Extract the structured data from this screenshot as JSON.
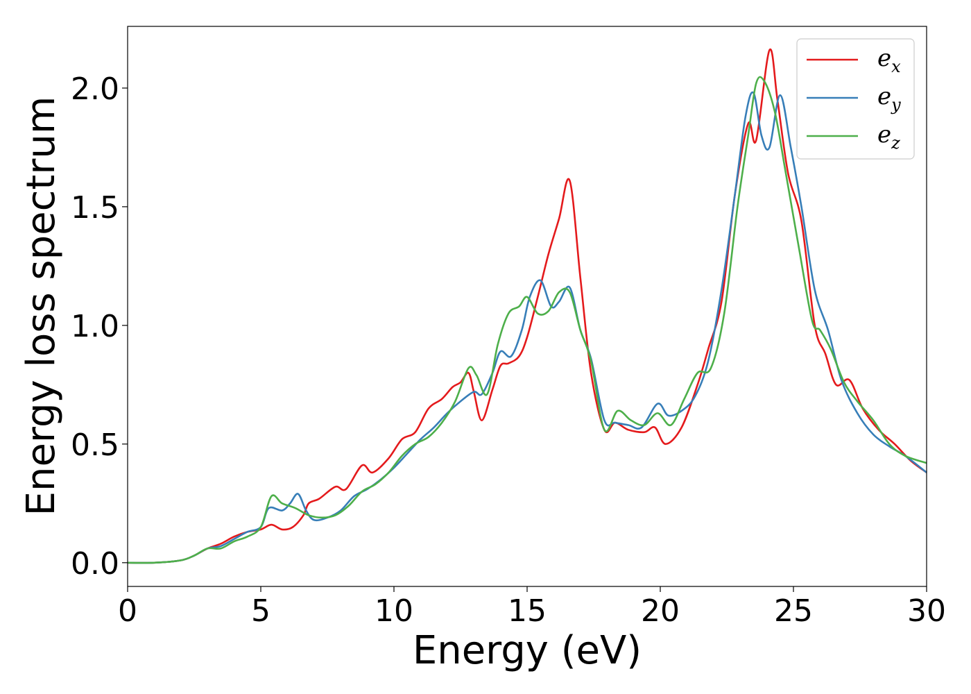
{
  "chart_data": {
    "type": "line",
    "title": "",
    "xlabel": "Energy (eV)",
    "ylabel": "Energy loss spectrum",
    "xlim": [
      0,
      30
    ],
    "ylim": [
      -0.1,
      2.26
    ],
    "xticks": [
      0,
      5,
      10,
      15,
      20,
      25,
      30
    ],
    "yticks": [
      0.0,
      0.5,
      1.0,
      1.5,
      2.0
    ],
    "xtick_labels": [
      "0",
      "5",
      "10",
      "15",
      "20",
      "25",
      "30"
    ],
    "ytick_labels": [
      "0.0",
      "0.5",
      "1.0",
      "1.5",
      "2.0"
    ],
    "grid": false,
    "legend_position": "top-right",
    "series": [
      {
        "name": "e_x",
        "legend_base": "e",
        "legend_sub": "x",
        "color": "#e41a1c",
        "x": [
          0,
          1,
          2,
          2.5,
          3,
          3.5,
          4,
          4.5,
          5,
          5.4,
          5.8,
          6.2,
          6.6,
          6.8,
          7.2,
          7.8,
          8.2,
          8.8,
          9.2,
          9.8,
          10.3,
          10.8,
          11.3,
          11.8,
          12.2,
          12.5,
          12.8,
          13.0,
          13.3,
          13.7,
          14.0,
          14.3,
          14.7,
          15.0,
          15.4,
          15.8,
          16.2,
          16.6,
          17.0,
          17.4,
          17.9,
          18.3,
          18.8,
          19.4,
          19.8,
          20.2,
          20.8,
          21.4,
          21.8,
          22.3,
          22.8,
          23.3,
          23.6,
          24.1,
          24.4,
          24.8,
          25.3,
          25.8,
          26.2,
          26.6,
          27.1,
          27.6,
          28.2,
          28.8,
          29.4,
          30
        ],
        "y": [
          0.0,
          0.0,
          0.01,
          0.03,
          0.06,
          0.08,
          0.11,
          0.13,
          0.14,
          0.16,
          0.14,
          0.15,
          0.2,
          0.25,
          0.27,
          0.32,
          0.31,
          0.41,
          0.38,
          0.44,
          0.52,
          0.55,
          0.65,
          0.69,
          0.74,
          0.76,
          0.8,
          0.72,
          0.6,
          0.73,
          0.83,
          0.84,
          0.87,
          0.95,
          1.12,
          1.3,
          1.45,
          1.61,
          1.2,
          0.8,
          0.56,
          0.59,
          0.56,
          0.55,
          0.57,
          0.5,
          0.57,
          0.75,
          0.9,
          1.1,
          1.55,
          1.85,
          1.78,
          2.16,
          1.95,
          1.64,
          1.44,
          1.0,
          0.88,
          0.75,
          0.77,
          0.65,
          0.56,
          0.5,
          0.43,
          0.38
        ]
      },
      {
        "name": "e_y",
        "legend_base": "e",
        "legend_sub": "y",
        "color": "#377eb8",
        "x": [
          0,
          1,
          2,
          2.5,
          3,
          3.5,
          4,
          4.5,
          5,
          5.3,
          5.8,
          6.1,
          6.4,
          6.7,
          7.0,
          7.5,
          8.0,
          8.5,
          9.0,
          9.5,
          10.0,
          10.5,
          11.0,
          11.5,
          12.0,
          12.5,
          13.0,
          13.3,
          13.7,
          14.0,
          14.4,
          14.8,
          15.1,
          15.5,
          15.9,
          16.2,
          16.6,
          17.0,
          17.4,
          17.9,
          18.3,
          18.8,
          19.3,
          19.9,
          20.3,
          20.8,
          21.3,
          21.8,
          22.3,
          22.8,
          23.2,
          23.5,
          23.8,
          24.1,
          24.5,
          24.9,
          25.3,
          25.8,
          26.3,
          26.8,
          27.4,
          28.0,
          28.6,
          29.2,
          30
        ],
        "y": [
          0.0,
          0.0,
          0.01,
          0.03,
          0.06,
          0.07,
          0.1,
          0.13,
          0.15,
          0.23,
          0.22,
          0.25,
          0.29,
          0.22,
          0.18,
          0.19,
          0.22,
          0.28,
          0.31,
          0.35,
          0.4,
          0.46,
          0.52,
          0.57,
          0.63,
          0.68,
          0.72,
          0.71,
          0.8,
          0.89,
          0.87,
          0.98,
          1.12,
          1.19,
          1.08,
          1.1,
          1.16,
          0.98,
          0.86,
          0.6,
          0.59,
          0.58,
          0.57,
          0.67,
          0.62,
          0.64,
          0.7,
          0.85,
          1.15,
          1.55,
          1.88,
          1.98,
          1.8,
          1.75,
          1.97,
          1.75,
          1.5,
          1.15,
          0.98,
          0.77,
          0.63,
          0.54,
          0.49,
          0.45,
          0.38
        ]
      },
      {
        "name": "e_z",
        "legend_base": "e",
        "legend_sub": "z",
        "color": "#4daf4a",
        "x": [
          0,
          1,
          2,
          2.5,
          3,
          3.5,
          4,
          4.5,
          5,
          5.4,
          5.8,
          6.3,
          6.8,
          7.3,
          7.8,
          8.3,
          8.8,
          9.3,
          9.8,
          10.3,
          10.8,
          11.3,
          11.8,
          12.3,
          12.8,
          13.1,
          13.5,
          13.9,
          14.3,
          14.7,
          15.0,
          15.4,
          15.8,
          16.2,
          16.6,
          17.0,
          17.4,
          17.9,
          18.4,
          18.9,
          19.4,
          19.9,
          20.4,
          20.9,
          21.4,
          21.9,
          22.4,
          22.9,
          23.3,
          23.6,
          23.9,
          24.3,
          24.7,
          25.2,
          25.7,
          26.0,
          26.4,
          26.9,
          27.4,
          28.0,
          28.6,
          29.2,
          30
        ],
        "y": [
          0.0,
          0.0,
          0.01,
          0.03,
          0.06,
          0.06,
          0.09,
          0.11,
          0.15,
          0.28,
          0.25,
          0.23,
          0.2,
          0.19,
          0.2,
          0.24,
          0.3,
          0.33,
          0.38,
          0.45,
          0.5,
          0.53,
          0.59,
          0.68,
          0.82,
          0.79,
          0.71,
          0.92,
          1.05,
          1.08,
          1.12,
          1.05,
          1.06,
          1.14,
          1.14,
          0.98,
          0.85,
          0.56,
          0.64,
          0.6,
          0.58,
          0.63,
          0.58,
          0.69,
          0.8,
          0.82,
          1.05,
          1.5,
          1.8,
          2.02,
          2.03,
          1.9,
          1.65,
          1.33,
          1.02,
          0.98,
          0.9,
          0.76,
          0.68,
          0.6,
          0.5,
          0.45,
          0.42
        ]
      }
    ]
  }
}
